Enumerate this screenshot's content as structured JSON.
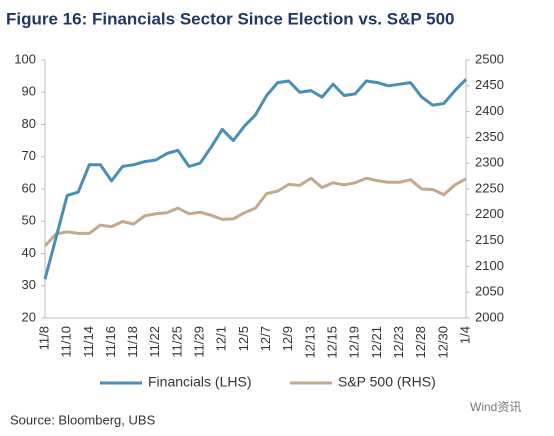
{
  "chart_data": {
    "type": "line",
    "title": "Figure 16: Financials Sector Since Election vs. S&P 500",
    "categories": [
      "11/8",
      null,
      "11/10",
      null,
      "11/14",
      null,
      "11/16",
      null,
      "11/18",
      null,
      "11/22",
      null,
      "11/25",
      null,
      "11/29",
      null,
      "12/1",
      null,
      "12/5",
      null,
      "12/7",
      null,
      "12/9",
      null,
      "12/13",
      null,
      "12/15",
      null,
      "12/19",
      null,
      "12/21",
      null,
      "12/23",
      null,
      "12/28",
      null,
      "12/30",
      null,
      "1/4"
    ],
    "series": [
      {
        "name": "Financials (LHS)",
        "color": "#4a8db5",
        "axis": "y",
        "values": [
          32,
          45,
          58,
          59,
          67.5,
          67.5,
          62.5,
          67,
          67.5,
          68.5,
          69,
          71,
          72,
          67,
          68,
          73,
          78.5,
          75,
          79.5,
          83,
          89,
          93,
          93.5,
          90,
          90.5,
          88.5,
          92.5,
          89,
          89.5,
          93.5,
          93,
          92,
          92.5,
          93,
          88.5,
          86,
          86.5,
          90.5,
          94
        ]
      },
      {
        "name": "S&P 500 (RHS)",
        "color": "#c2a98c",
        "axis": "y2",
        "values": [
          2140,
          2163,
          2167,
          2164,
          2164,
          2180,
          2177,
          2187,
          2182,
          2198,
          2202,
          2204,
          2213,
          2202,
          2205,
          2199,
          2191,
          2192,
          2204,
          2213,
          2241,
          2246,
          2259,
          2257,
          2271,
          2253,
          2262,
          2258,
          2262,
          2271,
          2266,
          2263,
          2263,
          2268,
          2250,
          2249,
          2239,
          2258,
          2270
        ]
      }
    ],
    "ylim": [
      20,
      100
    ],
    "yticks": [
      20,
      30,
      40,
      50,
      60,
      70,
      80,
      90,
      100
    ],
    "y2lim": [
      2000,
      2500
    ],
    "y2ticks": [
      2000,
      2050,
      2100,
      2150,
      2200,
      2250,
      2300,
      2350,
      2400,
      2450,
      2500
    ],
    "legend": "bottom",
    "source": "Source:  Bloomberg, UBS",
    "watermark": "Wind资讯"
  }
}
